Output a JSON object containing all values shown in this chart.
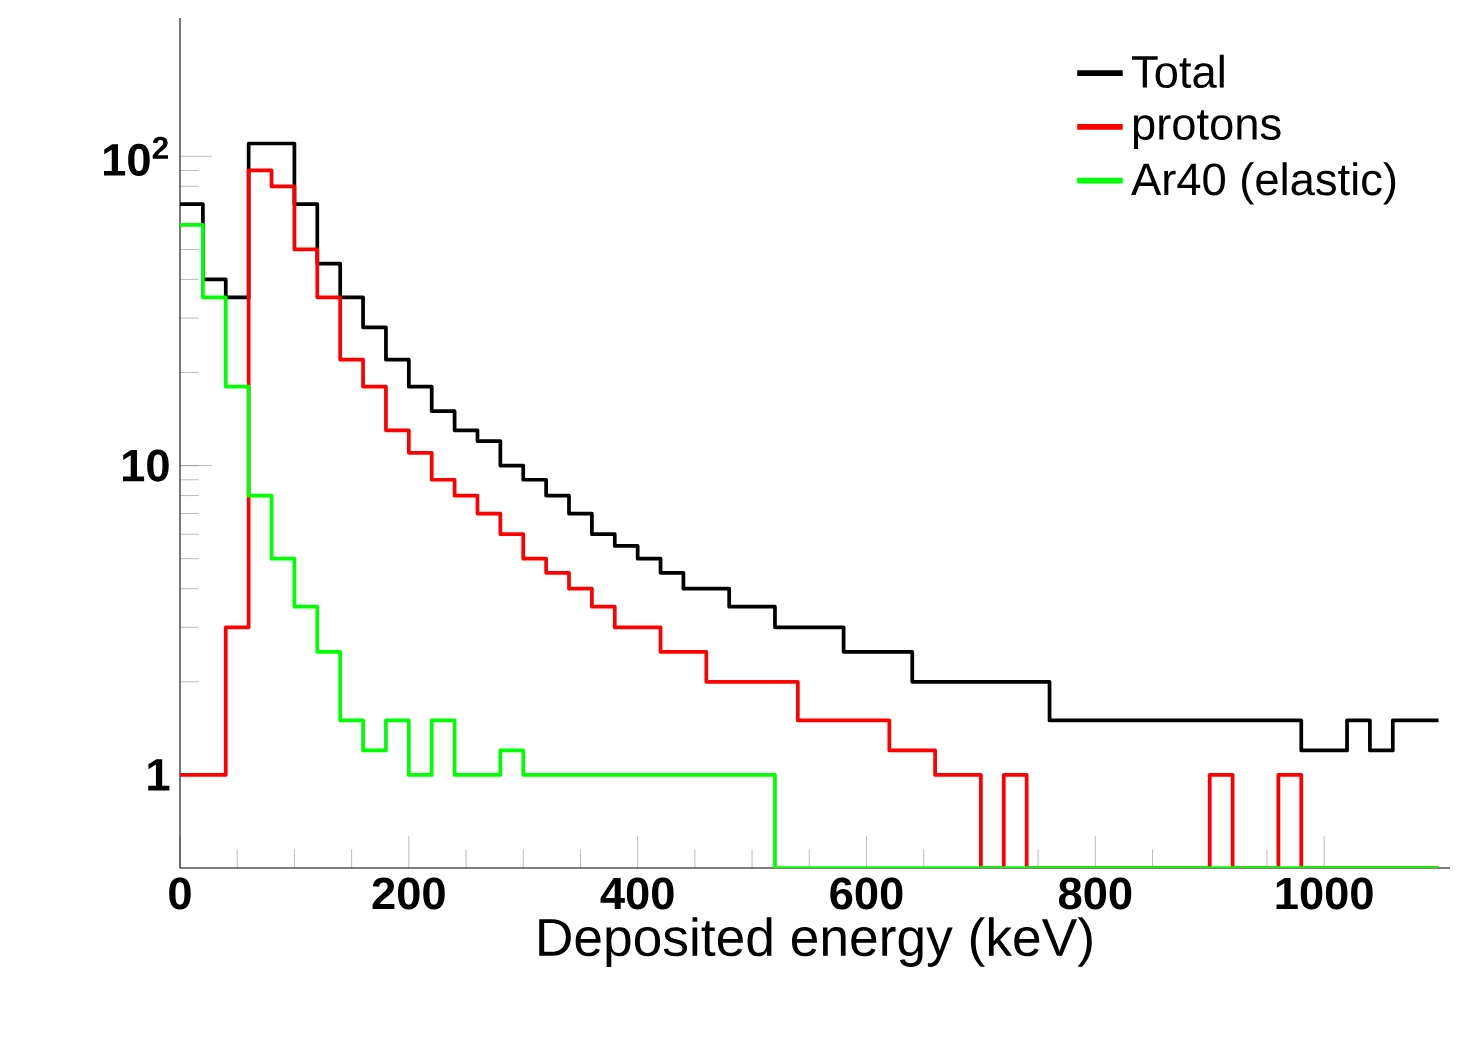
{
  "chart_data": {
    "type": "histogram",
    "xlabel": "Deposited energy (keV)",
    "bins": [
      0,
      20,
      40,
      60,
      80,
      100,
      120,
      140,
      160,
      180,
      200,
      220,
      240,
      260,
      280,
      300,
      320,
      340,
      360,
      380,
      400,
      420,
      440,
      460,
      480,
      500,
      520,
      540,
      560,
      580,
      600,
      620,
      640,
      660,
      680,
      700,
      720,
      740,
      760,
      780,
      800,
      820,
      840,
      860,
      880,
      900,
      920,
      940,
      960,
      980,
      1000,
      1020,
      1040,
      1060,
      1080,
      1100
    ],
    "series": [
      {
        "name": "Total",
        "color": "#000000",
        "values": [
          70,
          40,
          35,
          110,
          110,
          70,
          45,
          35,
          28,
          22,
          18,
          15,
          13,
          12,
          10,
          9,
          8,
          7,
          6,
          5.5,
          5,
          4.5,
          4,
          4,
          3.5,
          3.5,
          3,
          3,
          3,
          2.5,
          2.5,
          2.5,
          2,
          2,
          2,
          2,
          2,
          2,
          1.5,
          1.5,
          1.5,
          1.5,
          1.5,
          1.5,
          1.5,
          1.5,
          1.5,
          1.5,
          1.5,
          1.2,
          1.2,
          1.5,
          1.2,
          1.5,
          1.5
        ]
      },
      {
        "name": "protons",
        "color": "#ff0000",
        "values": [
          1,
          1,
          3,
          90,
          80,
          50,
          35,
          22,
          18,
          13,
          11,
          9,
          8,
          7,
          6,
          5,
          4.5,
          4,
          3.5,
          3,
          3,
          2.5,
          2.5,
          2,
          2,
          2,
          2,
          1.5,
          1.5,
          1.5,
          1.5,
          1.2,
          1.2,
          1,
          1,
          null,
          1,
          null,
          null,
          null,
          null,
          null,
          null,
          null,
          null,
          1,
          null,
          null,
          1,
          null,
          null,
          null,
          null,
          null,
          null
        ]
      },
      {
        "name": "Ar40 (elastic)",
        "color": "#00ff00",
        "values": [
          60,
          35,
          18,
          8,
          5,
          3.5,
          2.5,
          1.5,
          1.2,
          1.5,
          1,
          1.5,
          1,
          1,
          1.2,
          1,
          1,
          1,
          1,
          1,
          1,
          1,
          1,
          1,
          1,
          1,
          null,
          null,
          null,
          null,
          null,
          null,
          null,
          null,
          null,
          null,
          null,
          null,
          null,
          null,
          null,
          null,
          null,
          null,
          null,
          null,
          null,
          null,
          null,
          null,
          null,
          null,
          null,
          null,
          null
        ]
      }
    ],
    "xlim": [
      0,
      1110
    ],
    "ylim": [
      0.5,
      280
    ],
    "log": "y",
    "xticks": [
      0,
      200,
      400,
      600,
      800,
      1000
    ],
    "yticks": [
      1,
      10,
      {
        "value": 100,
        "label": "10$^{2}$"
      }
    ],
    "legend": "top right"
  }
}
